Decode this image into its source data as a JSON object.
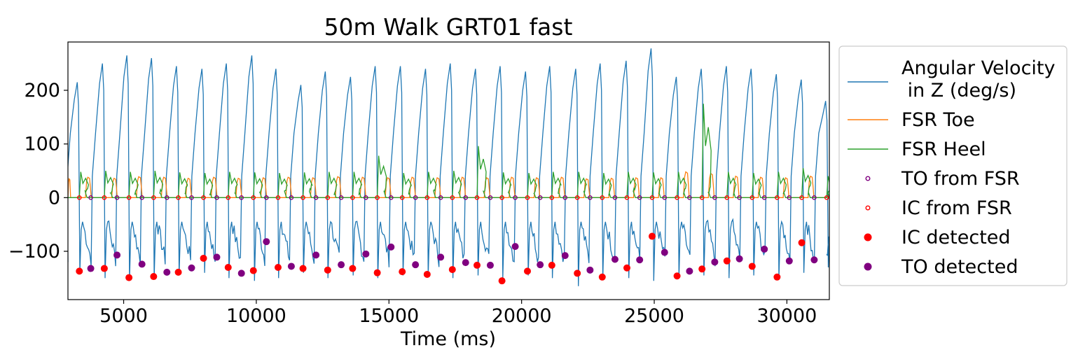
{
  "chart_data": {
    "type": "line",
    "title": "50m Walk GRT01 fast",
    "xlabel": "Time (ms)",
    "ylabel": "",
    "xlim": [
      2900,
      31600
    ],
    "ylim": [
      -190,
      290
    ],
    "xticks": [
      5000,
      10000,
      15000,
      20000,
      25000,
      30000
    ],
    "yticks": [
      200,
      100,
      0,
      -100
    ],
    "ytick_labels": [
      "200",
      "100",
      "0",
      "−100"
    ],
    "grid": false,
    "legend_position": "outside-right",
    "colors": {
      "angular": "#1f77b4",
      "toe": "#ff7f0e",
      "heel": "#2ca02c",
      "to": "#800080",
      "ic": "#ff0000"
    },
    "series": [
      {
        "name": "Angular Velocity\n in Z (deg/s)",
        "legend_lines": [
          "Angular Velocity",
          " in Z (deg/s)"
        ],
        "kind": "line",
        "peaks": [
          {
            "x": 3290,
            "peak": 215,
            "trough": -140
          },
          {
            "x": 4240,
            "peak": 250,
            "trough": -150
          },
          {
            "x": 5160,
            "peak": 265,
            "trough": -155
          },
          {
            "x": 6090,
            "peak": 260,
            "trough": -150
          },
          {
            "x": 7030,
            "peak": 245,
            "trough": -145
          },
          {
            "x": 7990,
            "peak": 240,
            "trough": -140
          },
          {
            "x": 8910,
            "peak": 250,
            "trough": -150
          },
          {
            "x": 9870,
            "peak": 265,
            "trough": -155
          },
          {
            "x": 10780,
            "peak": 240,
            "trough": -150
          },
          {
            "x": 11720,
            "peak": 210,
            "trough": -140
          },
          {
            "x": 12640,
            "peak": 235,
            "trough": -150
          },
          {
            "x": 13590,
            "peak": 225,
            "trough": -145
          },
          {
            "x": 14520,
            "peak": 245,
            "trough": -150
          },
          {
            "x": 15470,
            "peak": 245,
            "trough": -145
          },
          {
            "x": 16420,
            "peak": 240,
            "trough": -145
          },
          {
            "x": 17350,
            "peak": 250,
            "trough": -150
          },
          {
            "x": 18300,
            "peak": 240,
            "trough": -145
          },
          {
            "x": 19230,
            "peak": 245,
            "trough": -150
          },
          {
            "x": 20190,
            "peak": 235,
            "trough": -145
          },
          {
            "x": 21100,
            "peak": 245,
            "trough": -150
          },
          {
            "x": 22080,
            "peak": 240,
            "trough": -165
          },
          {
            "x": 23000,
            "peak": 250,
            "trough": -150
          },
          {
            "x": 23980,
            "peak": 255,
            "trough": -150
          },
          {
            "x": 24920,
            "peak": 278,
            "trough": -155
          },
          {
            "x": 25870,
            "peak": 225,
            "trough": -150
          },
          {
            "x": 26810,
            "peak": 240,
            "trough": -145
          },
          {
            "x": 27760,
            "peak": 245,
            "trough": -150
          },
          {
            "x": 28690,
            "peak": 240,
            "trough": -145
          },
          {
            "x": 29640,
            "peak": 230,
            "trough": -150
          },
          {
            "x": 30580,
            "peak": 220,
            "trough": -140
          },
          {
            "x": 31500,
            "peak": 180,
            "trough": -130
          }
        ]
      },
      {
        "name": "FSR Toe",
        "kind": "line",
        "pulses": [
          {
            "start": 2900,
            "end": 3000,
            "h": 35
          },
          {
            "start": 3560,
            "end": 3780,
            "h": 38
          },
          {
            "start": 4550,
            "end": 4760,
            "h": 36
          },
          {
            "start": 5480,
            "end": 5700,
            "h": 39
          },
          {
            "start": 6420,
            "end": 6640,
            "h": 38
          },
          {
            "start": 7340,
            "end": 7560,
            "h": 36
          },
          {
            "start": 8300,
            "end": 8520,
            "h": 38
          },
          {
            "start": 9230,
            "end": 9450,
            "h": 36
          },
          {
            "start": 10170,
            "end": 10390,
            "h": 37
          },
          {
            "start": 11110,
            "end": 11330,
            "h": 38
          },
          {
            "start": 12040,
            "end": 12260,
            "h": 37
          },
          {
            "start": 12980,
            "end": 13200,
            "h": 39
          },
          {
            "start": 13910,
            "end": 14130,
            "h": 38
          },
          {
            "start": 14860,
            "end": 15080,
            "h": 37
          },
          {
            "start": 15780,
            "end": 16000,
            "h": 38
          },
          {
            "start": 16730,
            "end": 16950,
            "h": 37
          },
          {
            "start": 17670,
            "end": 17890,
            "h": 38
          },
          {
            "start": 18590,
            "end": 18810,
            "h": 37
          },
          {
            "start": 19530,
            "end": 19750,
            "h": 38
          },
          {
            "start": 20470,
            "end": 20690,
            "h": 37
          },
          {
            "start": 21410,
            "end": 21630,
            "h": 38
          },
          {
            "start": 22350,
            "end": 22570,
            "h": 35
          },
          {
            "start": 23290,
            "end": 23510,
            "h": 36
          },
          {
            "start": 24220,
            "end": 24440,
            "h": 37
          },
          {
            "start": 25160,
            "end": 25380,
            "h": 37
          },
          {
            "start": 26100,
            "end": 26320,
            "h": 48
          },
          {
            "start": 27040,
            "end": 27260,
            "h": 45
          },
          {
            "start": 27980,
            "end": 28200,
            "h": 40
          },
          {
            "start": 28920,
            "end": 29140,
            "h": 38
          },
          {
            "start": 29860,
            "end": 30080,
            "h": 37
          },
          {
            "start": 30800,
            "end": 31020,
            "h": 40
          }
        ]
      },
      {
        "name": "FSR Heel",
        "kind": "line",
        "pulses": [
          {
            "start": 3330,
            "end": 3620,
            "h": 48
          },
          {
            "start": 4270,
            "end": 4580,
            "h": 50
          },
          {
            "start": 5200,
            "end": 5500,
            "h": 48
          },
          {
            "start": 6130,
            "end": 6440,
            "h": 50
          },
          {
            "start": 7060,
            "end": 7380,
            "h": 47
          },
          {
            "start": 8010,
            "end": 8320,
            "h": 46
          },
          {
            "start": 8940,
            "end": 9260,
            "h": 48
          },
          {
            "start": 9890,
            "end": 10200,
            "h": 47
          },
          {
            "start": 10820,
            "end": 11140,
            "h": 46
          },
          {
            "start": 11760,
            "end": 12080,
            "h": 47
          },
          {
            "start": 12690,
            "end": 13010,
            "h": 48
          },
          {
            "start": 13630,
            "end": 13950,
            "h": 48
          },
          {
            "start": 14560,
            "end": 14890,
            "h": 78
          },
          {
            "start": 15500,
            "end": 15820,
            "h": 46
          },
          {
            "start": 16440,
            "end": 16760,
            "h": 48
          },
          {
            "start": 17390,
            "end": 17700,
            "h": 50
          },
          {
            "start": 18320,
            "end": 18640,
            "h": 96
          },
          {
            "start": 19260,
            "end": 19580,
            "h": 47
          },
          {
            "start": 20220,
            "end": 20530,
            "h": 46
          },
          {
            "start": 21140,
            "end": 21460,
            "h": 48
          },
          {
            "start": 22100,
            "end": 22420,
            "h": 48
          },
          {
            "start": 23040,
            "end": 23360,
            "h": 46
          },
          {
            "start": 23970,
            "end": 24290,
            "h": 48
          },
          {
            "start": 24920,
            "end": 25240,
            "h": 47
          },
          {
            "start": 25860,
            "end": 26180,
            "h": 48
          },
          {
            "start": 26800,
            "end": 27120,
            "h": 175
          },
          {
            "start": 27740,
            "end": 28060,
            "h": 48
          },
          {
            "start": 28690,
            "end": 29010,
            "h": 46
          },
          {
            "start": 29630,
            "end": 29950,
            "h": 48
          },
          {
            "start": 30560,
            "end": 30880,
            "h": 55
          },
          {
            "start": 31500,
            "end": 31600,
            "h": 40
          }
        ]
      },
      {
        "name": "TO from FSR",
        "kind": "scatter-open",
        "x": [
          3760,
          4750,
          5690,
          6630,
          7560,
          8510,
          9440,
          10380,
          11320,
          12250,
          13200,
          14130,
          15080,
          16000,
          16950,
          17890,
          18820,
          19760,
          20700,
          21640,
          22580,
          23520,
          24450,
          25390,
          26330,
          27280,
          28210,
          29150,
          30090,
          31030
        ],
        "y": 0
      },
      {
        "name": "IC from FSR",
        "kind": "scatter-open",
        "x": [
          3330,
          4270,
          5200,
          6130,
          7060,
          8010,
          8940,
          9890,
          10820,
          11760,
          12690,
          13630,
          14560,
          15500,
          16440,
          17390,
          18320,
          19260,
          20220,
          21140,
          22100,
          23040,
          23970,
          24920,
          25860,
          26800,
          27740,
          28690,
          29630,
          30560,
          31500
        ],
        "y": 0
      },
      {
        "name": "IC detected",
        "kind": "scatter",
        "points": [
          [
            3330,
            -137
          ],
          [
            4270,
            -132
          ],
          [
            5200,
            -149
          ],
          [
            6130,
            -147
          ],
          [
            7060,
            -139
          ],
          [
            8010,
            -113
          ],
          [
            8940,
            -130
          ],
          [
            9890,
            -136
          ],
          [
            10820,
            -130
          ],
          [
            11760,
            -132
          ],
          [
            12690,
            -135
          ],
          [
            13630,
            -132
          ],
          [
            14560,
            -140
          ],
          [
            15500,
            -138
          ],
          [
            16440,
            -143
          ],
          [
            17390,
            -134
          ],
          [
            18320,
            -126
          ],
          [
            19260,
            -155
          ],
          [
            20220,
            -137
          ],
          [
            21140,
            -126
          ],
          [
            22100,
            -141
          ],
          [
            23040,
            -148
          ],
          [
            23970,
            -131
          ],
          [
            24920,
            -72
          ],
          [
            25860,
            -146
          ],
          [
            26800,
            -133
          ],
          [
            27740,
            -118
          ],
          [
            28690,
            -128
          ],
          [
            29630,
            -148
          ],
          [
            30560,
            -84
          ]
        ]
      },
      {
        "name": "TO detected",
        "kind": "scatter",
        "points": [
          [
            3760,
            -132
          ],
          [
            4750,
            -107
          ],
          [
            5690,
            -124
          ],
          [
            6630,
            -139
          ],
          [
            7560,
            -131
          ],
          [
            8510,
            -111
          ],
          [
            9440,
            -141
          ],
          [
            10380,
            -82
          ],
          [
            11320,
            -128
          ],
          [
            12250,
            -107
          ],
          [
            13200,
            -125
          ],
          [
            14130,
            -105
          ],
          [
            15080,
            -92
          ],
          [
            16000,
            -125
          ],
          [
            16950,
            -111
          ],
          [
            17890,
            -121
          ],
          [
            18820,
            -126
          ],
          [
            19760,
            -91
          ],
          [
            20700,
            -125
          ],
          [
            21640,
            -108
          ],
          [
            22580,
            -135
          ],
          [
            23520,
            -115
          ],
          [
            24450,
            -116
          ],
          [
            25390,
            -102
          ],
          [
            26330,
            -137
          ],
          [
            27280,
            -120
          ],
          [
            28210,
            -114
          ],
          [
            29150,
            -96
          ],
          [
            30090,
            -118
          ],
          [
            31030,
            -116
          ]
        ]
      }
    ]
  }
}
